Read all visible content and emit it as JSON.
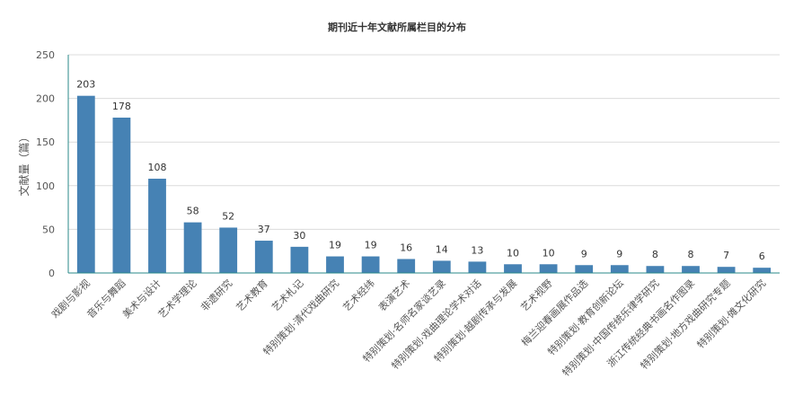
{
  "chart_data": {
    "type": "bar",
    "title": "期刊近十年文献所属栏目的分布",
    "xlabel": "",
    "ylabel": "文献量（篇）",
    "ylim": [
      0,
      250
    ],
    "yticks": [
      0,
      50,
      100,
      150,
      200,
      250
    ],
    "grid": true,
    "color": "#4682b4",
    "categories": [
      "戏剧与影视",
      "音乐与舞蹈",
      "美术与设计",
      "艺术学理论",
      "非遗研究",
      "艺术教育",
      "艺术札记",
      "特别策划·清代戏曲研究",
      "艺术经纬",
      "表演艺术",
      "特别策划·名师名家谈艺录",
      "特别策划·戏曲理论学术对话",
      "特别策划·越剧传承与发展",
      "艺术视野",
      "梅兰迎春画展作品选",
      "特别策划·教育创新论坛",
      "特别策划·中国传统乐律学研究",
      "浙江传统经典书画名作图录",
      "特别策划·地方戏曲研究专题",
      "特别策划·傩文化研究"
    ],
    "values": [
      203,
      178,
      108,
      58,
      52,
      37,
      30,
      19,
      19,
      16,
      14,
      13,
      10,
      10,
      9,
      9,
      8,
      8,
      7,
      6
    ]
  }
}
